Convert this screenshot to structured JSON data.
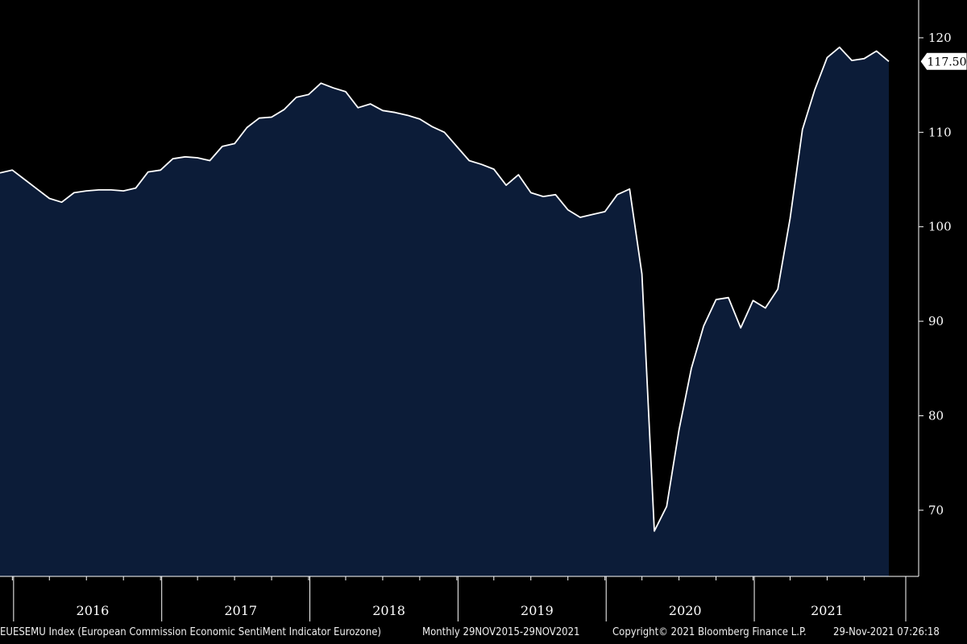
{
  "chart_data": {
    "type": "area",
    "ticker": "EUESEMU Index",
    "title": "European Commission Economic Sentiment Indicator Eurozone",
    "periodicity": "Monthly",
    "date_range": "29NOV2015-29NOV2021",
    "x_years": [
      "2016",
      "2017",
      "2018",
      "2019",
      "2020",
      "2021"
    ],
    "y_ticks": [
      70,
      80,
      90,
      100,
      110,
      120
    ],
    "ylim": [
      63,
      124
    ],
    "last_value_label": "117.50",
    "grid": false,
    "colors": {
      "background": "#000000",
      "fill": "#0c1c38",
      "line": "#ffffff",
      "text": "#ffffff"
    },
    "series": [
      {
        "x": [
          "2015-11",
          "2015-12",
          "2016-01",
          "2016-02",
          "2016-03",
          "2016-04",
          "2016-05",
          "2016-06",
          "2016-07",
          "2016-08",
          "2016-09",
          "2016-10",
          "2016-11",
          "2016-12",
          "2017-01",
          "2017-02",
          "2017-03",
          "2017-04",
          "2017-05",
          "2017-06",
          "2017-07",
          "2017-08",
          "2017-09",
          "2017-10",
          "2017-11",
          "2017-12",
          "2018-01",
          "2018-02",
          "2018-03",
          "2018-04",
          "2018-05",
          "2018-06",
          "2018-07",
          "2018-08",
          "2018-09",
          "2018-10",
          "2018-11",
          "2018-12",
          "2019-01",
          "2019-02",
          "2019-03",
          "2019-04",
          "2019-05",
          "2019-06",
          "2019-07",
          "2019-08",
          "2019-09",
          "2019-10",
          "2019-11",
          "2019-12",
          "2020-01",
          "2020-02",
          "2020-03",
          "2020-04",
          "2020-05",
          "2020-06",
          "2020-07",
          "2020-08",
          "2020-09",
          "2020-10",
          "2020-11",
          "2020-12",
          "2021-01",
          "2021-02",
          "2021-03",
          "2021-04",
          "2021-05",
          "2021-06",
          "2021-07",
          "2021-08",
          "2021-09",
          "2021-10",
          "2021-11"
        ],
        "values": [
          105.7,
          106.0,
          105.0,
          104.0,
          103.0,
          102.6,
          103.6,
          103.8,
          103.9,
          103.9,
          103.8,
          104.1,
          105.8,
          106.0,
          107.2,
          107.4,
          107.3,
          107.0,
          108.5,
          108.8,
          110.5,
          111.5,
          111.6,
          112.4,
          113.7,
          114.0,
          115.2,
          114.7,
          114.3,
          112.6,
          113.0,
          112.3,
          112.1,
          111.8,
          111.4,
          110.6,
          110.0,
          108.5,
          107.0,
          106.6,
          106.1,
          104.4,
          105.5,
          103.6,
          103.2,
          103.4,
          101.8,
          101.0,
          101.3,
          101.6,
          103.4,
          104.0,
          95.0,
          67.8,
          70.4,
          78.5,
          85.0,
          89.5,
          92.3,
          92.5,
          89.3,
          92.2,
          91.4,
          93.4,
          100.9,
          110.3,
          114.5,
          117.9,
          119.0,
          117.6,
          117.8,
          118.6,
          117.5
        ]
      }
    ]
  },
  "footer": {
    "left": "EUESEMU Index (European Commission Economic SentiMent Indicator Eurozone)",
    "mid": "Monthly 29NOV2015-29NOV2021",
    "copyright": "Copyright© 2021 Bloomberg Finance L.P.",
    "timestamp": "29-Nov-2021 07:26:18"
  }
}
